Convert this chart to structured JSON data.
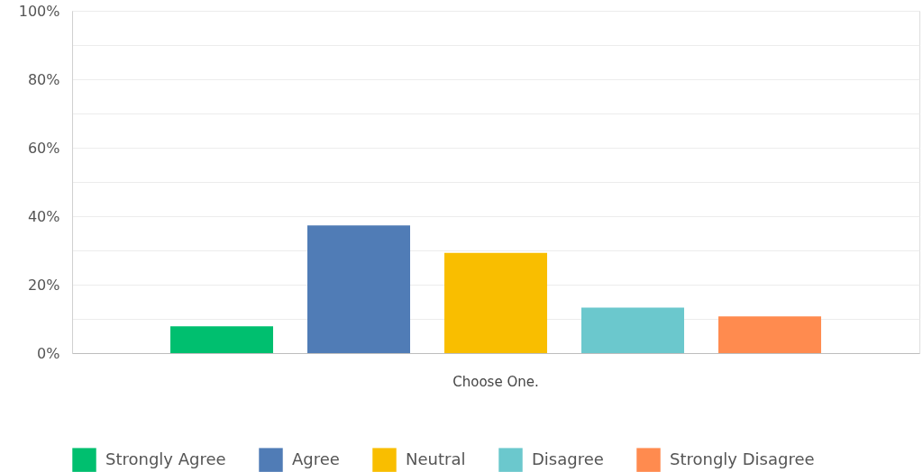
{
  "chart_data": {
    "type": "bar",
    "categories": [
      "Choose One."
    ],
    "series": [
      {
        "name": "Strongly Agree",
        "color": "#00bf6f",
        "values": [
          7.8
        ]
      },
      {
        "name": "Agree",
        "color": "#507cb6",
        "values": [
          37.3
        ]
      },
      {
        "name": "Neutral",
        "color": "#f9be00",
        "values": [
          29.3
        ]
      },
      {
        "name": "Disagree",
        "color": "#6bc8cd",
        "values": [
          13.3
        ]
      },
      {
        "name": "Strongly Disagree",
        "color": "#ff8b4f",
        "values": [
          10.7
        ]
      }
    ],
    "ylim": [
      0,
      100
    ],
    "yticks": [
      {
        "value": 0,
        "label": "0%"
      },
      {
        "value": 10,
        "label": null
      },
      {
        "value": 20,
        "label": "20%"
      },
      {
        "value": 30,
        "label": null
      },
      {
        "value": 40,
        "label": "40%"
      },
      {
        "value": 50,
        "label": null
      },
      {
        "value": 60,
        "label": "60%"
      },
      {
        "value": 70,
        "label": null
      },
      {
        "value": 80,
        "label": "80%"
      },
      {
        "value": 90,
        "label": null
      },
      {
        "value": 100,
        "label": "100%"
      }
    ],
    "grid": "y",
    "legend": "bottom"
  }
}
